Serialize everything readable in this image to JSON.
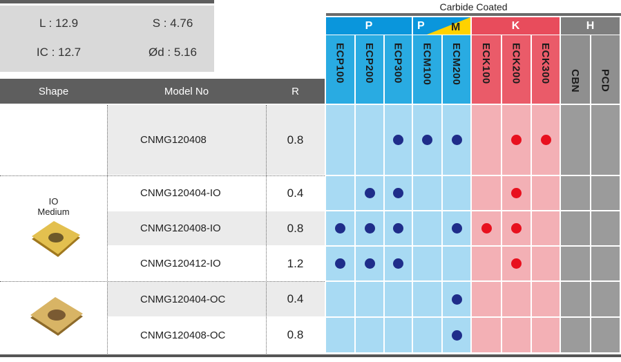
{
  "specs": [
    "L : 12.9",
    "S : 4.76",
    "IC : 12.7",
    "Ød : 5.16"
  ],
  "table": {
    "supertitle": "Carbide Coated",
    "headers": [
      "Shape",
      "Model No",
      "R"
    ],
    "groups": [
      {
        "label": "P",
        "color": "#0a96dc"
      },
      {
        "label": "P",
        "label2": "M",
        "color": "#0a96dc"
      },
      {
        "label": "K",
        "color": "#e84c5c"
      },
      {
        "label": "H",
        "color": "#7e7e7e"
      }
    ],
    "grades": [
      "ECP100",
      "ECP200",
      "ECP300",
      "ECM100",
      "ECM200",
      "ECK100",
      "ECK200",
      "ECK300",
      "CBN",
      "PCD"
    ],
    "shape_label": [
      "IO",
      "Medium"
    ],
    "rows": [
      {
        "model": "CNMG120408",
        "r": 0.8,
        "available": [
          false,
          false,
          true,
          true,
          true,
          false,
          true,
          true,
          false,
          false
        ]
      },
      {
        "model": "CNMG120404-IO",
        "r": 0.4,
        "available": [
          false,
          true,
          true,
          false,
          false,
          false,
          true,
          false,
          false,
          false
        ]
      },
      {
        "model": "CNMG120408-IO",
        "r": 0.8,
        "available": [
          true,
          true,
          true,
          false,
          true,
          true,
          true,
          false,
          false,
          false
        ]
      },
      {
        "model": "CNMG120412-IO",
        "r": 1.2,
        "available": [
          true,
          true,
          true,
          false,
          false,
          false,
          true,
          false,
          false,
          false
        ]
      },
      {
        "model": "CNMG120404-OC",
        "r": 0.4,
        "available": [
          false,
          false,
          false,
          false,
          true,
          false,
          false,
          false,
          false,
          false
        ]
      },
      {
        "model": "CNMG120408-OC",
        "r": 0.8,
        "available": [
          false,
          false,
          false,
          false,
          true,
          false,
          false,
          false,
          false,
          false
        ]
      }
    ]
  }
}
